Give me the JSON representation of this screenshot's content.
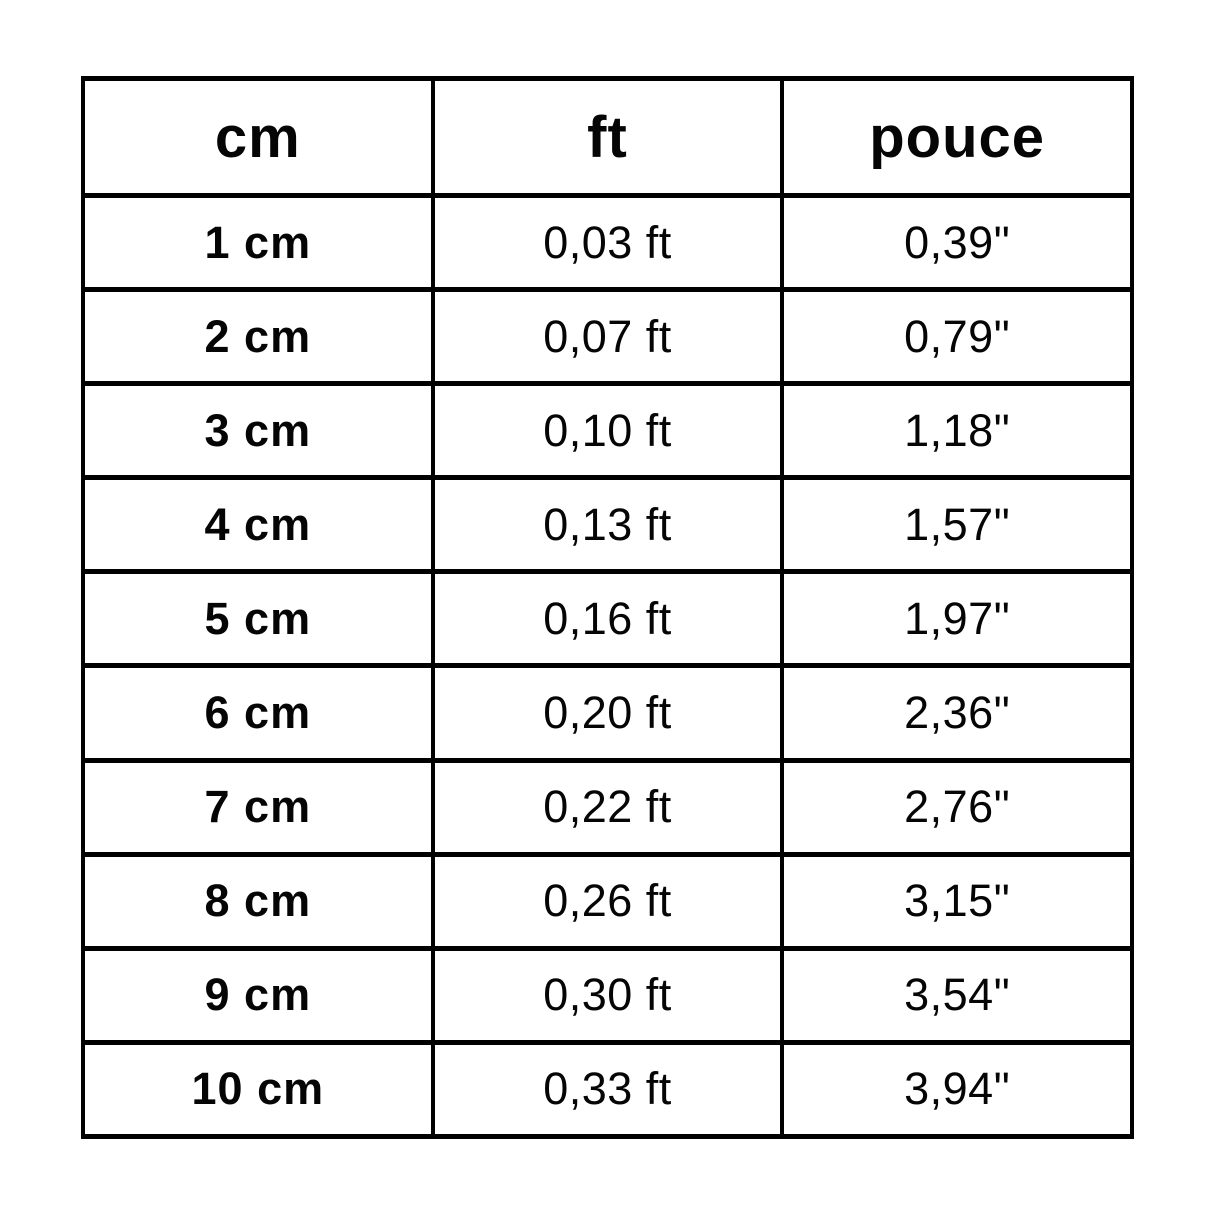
{
  "table": {
    "columns": [
      {
        "key": "cm",
        "label": "cm"
      },
      {
        "key": "ft",
        "label": "ft"
      },
      {
        "key": "pouce",
        "label": "pouce"
      }
    ],
    "rows": [
      {
        "cm": "1 cm",
        "ft": "0,03 ft",
        "pouce": "0,39\""
      },
      {
        "cm": "2 cm",
        "ft": "0,07 ft",
        "pouce": "0,79\""
      },
      {
        "cm": "3 cm",
        "ft": "0,10 ft",
        "pouce": "1,18\""
      },
      {
        "cm": "4 cm",
        "ft": "0,13 ft",
        "pouce": "1,57\""
      },
      {
        "cm": "5 cm",
        "ft": "0,16 ft",
        "pouce": "1,97\""
      },
      {
        "cm": "6 cm",
        "ft": "0,20 ft",
        "pouce": "2,36\""
      },
      {
        "cm": "7 cm",
        "ft": "0,22 ft",
        "pouce": "2,76\""
      },
      {
        "cm": "8 cm",
        "ft": "0,26 ft",
        "pouce": "3,15\""
      },
      {
        "cm": "9 cm",
        "ft": "0,30 ft",
        "pouce": "3,54\""
      },
      {
        "cm": "10 cm",
        "ft": "0,33 ft",
        "pouce": "3,94\""
      }
    ]
  },
  "colors": {
    "text": "#050505",
    "border": "#000000",
    "background": "#ffffff"
  },
  "chart_data": {
    "type": "table",
    "title": "",
    "columns": [
      "cm",
      "ft",
      "pouce"
    ],
    "rows": [
      [
        "1 cm",
        "0,03 ft",
        "0,39\""
      ],
      [
        "2 cm",
        "0,07 ft",
        "0,79\""
      ],
      [
        "3 cm",
        "0,10 ft",
        "1,18\""
      ],
      [
        "4 cm",
        "0,13 ft",
        "1,57\""
      ],
      [
        "5 cm",
        "0,16 ft",
        "1,97\""
      ],
      [
        "6 cm",
        "0,20 ft",
        "2,36\""
      ],
      [
        "7 cm",
        "0,22 ft",
        "2,76\""
      ],
      [
        "8 cm",
        "0,26 ft",
        "3,15\""
      ],
      [
        "9 cm",
        "0,30 ft",
        "3,54\""
      ],
      [
        "10 cm",
        "0,33 ft",
        "3,94\""
      ]
    ],
    "numeric_values": {
      "cm": [
        1,
        2,
        3,
        4,
        5,
        6,
        7,
        8,
        9,
        10
      ],
      "ft": [
        0.03,
        0.07,
        0.1,
        0.13,
        0.16,
        0.2,
        0.22,
        0.26,
        0.3,
        0.33
      ],
      "pouce": [
        0.39,
        0.79,
        1.18,
        1.57,
        1.97,
        2.36,
        2.76,
        3.15,
        3.54,
        3.94
      ]
    },
    "layout_hints": {
      "grid": "on",
      "border_color": "#000000",
      "header_bold": true,
      "first_column_bold": true
    }
  }
}
